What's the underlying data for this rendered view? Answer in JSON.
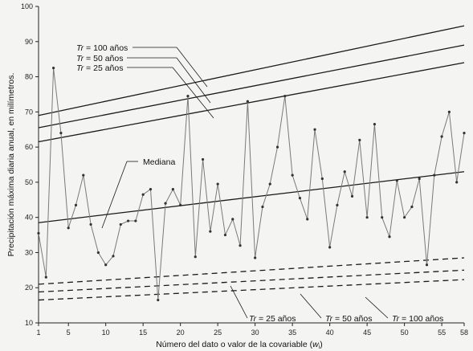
{
  "chart_data": {
    "type": "line",
    "xlabel": "Número del dato o valor de la covariable (",
    "xlabel_var": "w",
    "xlabel_sub": "i",
    "xlabel_end": ")",
    "ylabel": "Precipitación máxima diaria anual, en milímetros.",
    "xlim": [
      1,
      58
    ],
    "ylim": [
      10,
      100
    ],
    "xticks": [
      1,
      5,
      10,
      15,
      20,
      25,
      30,
      35,
      40,
      45,
      50,
      55,
      58
    ],
    "yticks": [
      10,
      20,
      30,
      40,
      50,
      60,
      70,
      80,
      90,
      100
    ],
    "grid": false,
    "data_series": {
      "x": [
        1,
        2,
        3,
        4,
        5,
        6,
        7,
        8,
        9,
        10,
        11,
        12,
        13,
        14,
        15,
        16,
        17,
        18,
        19,
        20,
        21,
        22,
        23,
        24,
        25,
        26,
        27,
        28,
        29,
        30,
        31,
        32,
        33,
        34,
        35,
        36,
        37,
        38,
        39,
        40,
        41,
        42,
        43,
        44,
        45,
        46,
        47,
        48,
        49,
        50,
        51,
        52,
        53,
        54,
        55,
        56,
        57,
        58
      ],
      "y": [
        35.5,
        23,
        82.5,
        64,
        37,
        43.5,
        52,
        38,
        30,
        26.5,
        29,
        38,
        39,
        39,
        46.5,
        48,
        16.5,
        44,
        48,
        43.5,
        74.5,
        28.8,
        56.5,
        36,
        49.5,
        35,
        39.5,
        32,
        73,
        28.5,
        43,
        49.5,
        60,
        74.5,
        52,
        45.5,
        39.5,
        65,
        51,
        31.5,
        43.5,
        53,
        46,
        62,
        40,
        66.5,
        40,
        34.5,
        50.5,
        40,
        43,
        51,
        26.5,
        52,
        63,
        70,
        50,
        64
      ]
    },
    "series": [
      {
        "name": "Mediana",
        "x": [
          1,
          58
        ],
        "y": [
          38.5,
          53
        ],
        "style": "solid"
      },
      {
        "name": "Tr = 100 años (superior)",
        "x": [
          1,
          58
        ],
        "y": [
          69,
          94.5
        ],
        "style": "solid"
      },
      {
        "name": "Tr = 50 años (superior)",
        "x": [
          1,
          58
        ],
        "y": [
          65.5,
          89
        ],
        "style": "solid"
      },
      {
        "name": "Tr = 25 años (superior)",
        "x": [
          1,
          58
        ],
        "y": [
          61.5,
          84
        ],
        "style": "solid"
      },
      {
        "name": "Tr = 25 años (inferior)",
        "x": [
          1,
          58
        ],
        "y": [
          21,
          28.5
        ],
        "style": "dashed"
      },
      {
        "name": "Tr = 50 años (inferior)",
        "x": [
          1,
          58
        ],
        "y": [
          18.8,
          25
        ],
        "style": "dashed"
      },
      {
        "name": "Tr = 100 años (inferior)",
        "x": [
          1,
          58
        ],
        "y": [
          16.5,
          22.3
        ],
        "style": "dashed"
      }
    ],
    "annotations": {
      "upper": [
        {
          "prefix": "Tr",
          "text": " = 100 años"
        },
        {
          "prefix": "Tr",
          "text": " = 50 años"
        },
        {
          "prefix": "Tr",
          "text": " = 25 años"
        }
      ],
      "mediana": "Mediana",
      "lower": [
        {
          "prefix": "Tr",
          "text": " = 25 años"
        },
        {
          "prefix": "Tr",
          "text": " = 50 años"
        },
        {
          "prefix": "Tr",
          "text": " = 100 años"
        }
      ]
    },
    "colors": {
      "data": "#7a7a7a",
      "lines": "#1a1a1a",
      "axis": "#222222",
      "background": "#f4f4f2"
    }
  }
}
